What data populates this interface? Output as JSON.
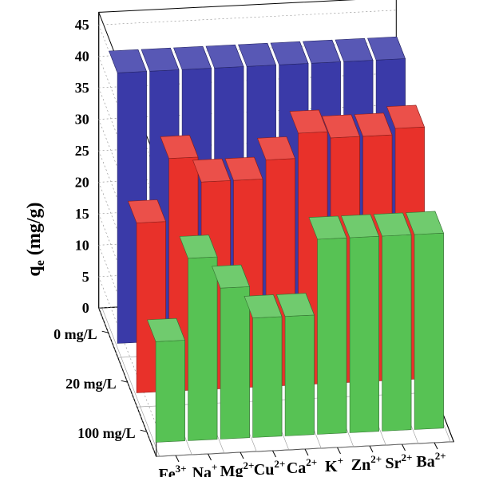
{
  "chart_data": {
    "type": "bar",
    "subtype": "3d-grouped",
    "ylabel": "q",
    "ylabel_sub": "e",
    "ylabel_unit": " (mg/g)",
    "ylim": [
      0,
      45
    ],
    "yticks": [
      "0",
      "5",
      "10",
      "15",
      "20",
      "25",
      "30",
      "35",
      "40",
      "45"
    ],
    "categories": [
      "Fe",
      "Na",
      "Mg",
      "Cu",
      "Ca",
      "K",
      "Zn",
      "Sr",
      "Ba"
    ],
    "category_charges": [
      "3+",
      "+",
      "2+",
      "2+",
      "2+",
      "+",
      "2+",
      "2+",
      "2+"
    ],
    "depth_categories": [
      "0 mg/L",
      "20 mg/L",
      "100 mg/L"
    ],
    "grid": true,
    "series": [
      {
        "color": "#3a3aa8",
        "values": [
          43,
          43,
          43,
          43,
          43,
          43,
          43,
          43,
          43
        ]
      },
      {
        "color": "#e8312a",
        "values": [
          27,
          37,
          33,
          33,
          36,
          40,
          39,
          39,
          40
        ]
      },
      {
        "color": "#57c254",
        "values": [
          16,
          29,
          24,
          19,
          19,
          31,
          31,
          31,
          31
        ]
      }
    ]
  }
}
